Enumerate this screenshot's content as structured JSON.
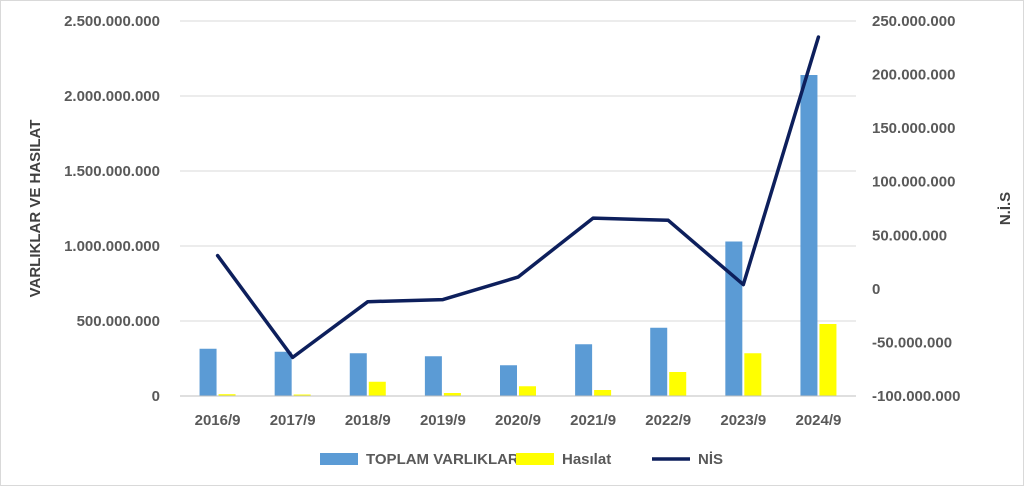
{
  "chart_data": {
    "type": "bar",
    "categories": [
      "2016/9",
      "2017/9",
      "2018/9",
      "2019/9",
      "2020/9",
      "2021/9",
      "2022/9",
      "2023/9",
      "2024/9"
    ],
    "series": [
      {
        "name": "TOPLAM VARLIKLAR",
        "type": "bar",
        "axis": "left",
        "color": "#5b9bd5",
        "values": [
          315000000,
          295000000,
          285000000,
          265000000,
          205000000,
          345000000,
          455000000,
          1030000000,
          2140000000
        ]
      },
      {
        "name": "Hasılat",
        "type": "bar",
        "axis": "left",
        "color": "#ffff00",
        "values": [
          12000000,
          10000000,
          95000000,
          20000000,
          65000000,
          40000000,
          160000000,
          285000000,
          480000000
        ]
      },
      {
        "name": "NİS",
        "type": "line",
        "axis": "right",
        "color": "#0d1f5c",
        "values": [
          31000000,
          -64000000,
          -12000000,
          -10000000,
          11000000,
          66000000,
          64000000,
          4000000,
          235000000
        ]
      }
    ],
    "ylabel": "VARLIKLAR VE HASILAT",
    "y2label": "N.İ.S",
    "ylim": [
      0,
      2500000000
    ],
    "y2lim": [
      -100000000,
      250000000
    ],
    "yticks": [
      "0",
      "500.000.000",
      "1.000.000.000",
      "1.500.000.000",
      "2.000.000.000",
      "2.500.000.000"
    ],
    "y2ticks": [
      "-100.000.000",
      "-50.000.000",
      "0",
      "50.000.000",
      "100.000.000",
      "150.000.000",
      "200.000.000",
      "250.000.000"
    ],
    "grid": true,
    "legend": "bottom"
  }
}
